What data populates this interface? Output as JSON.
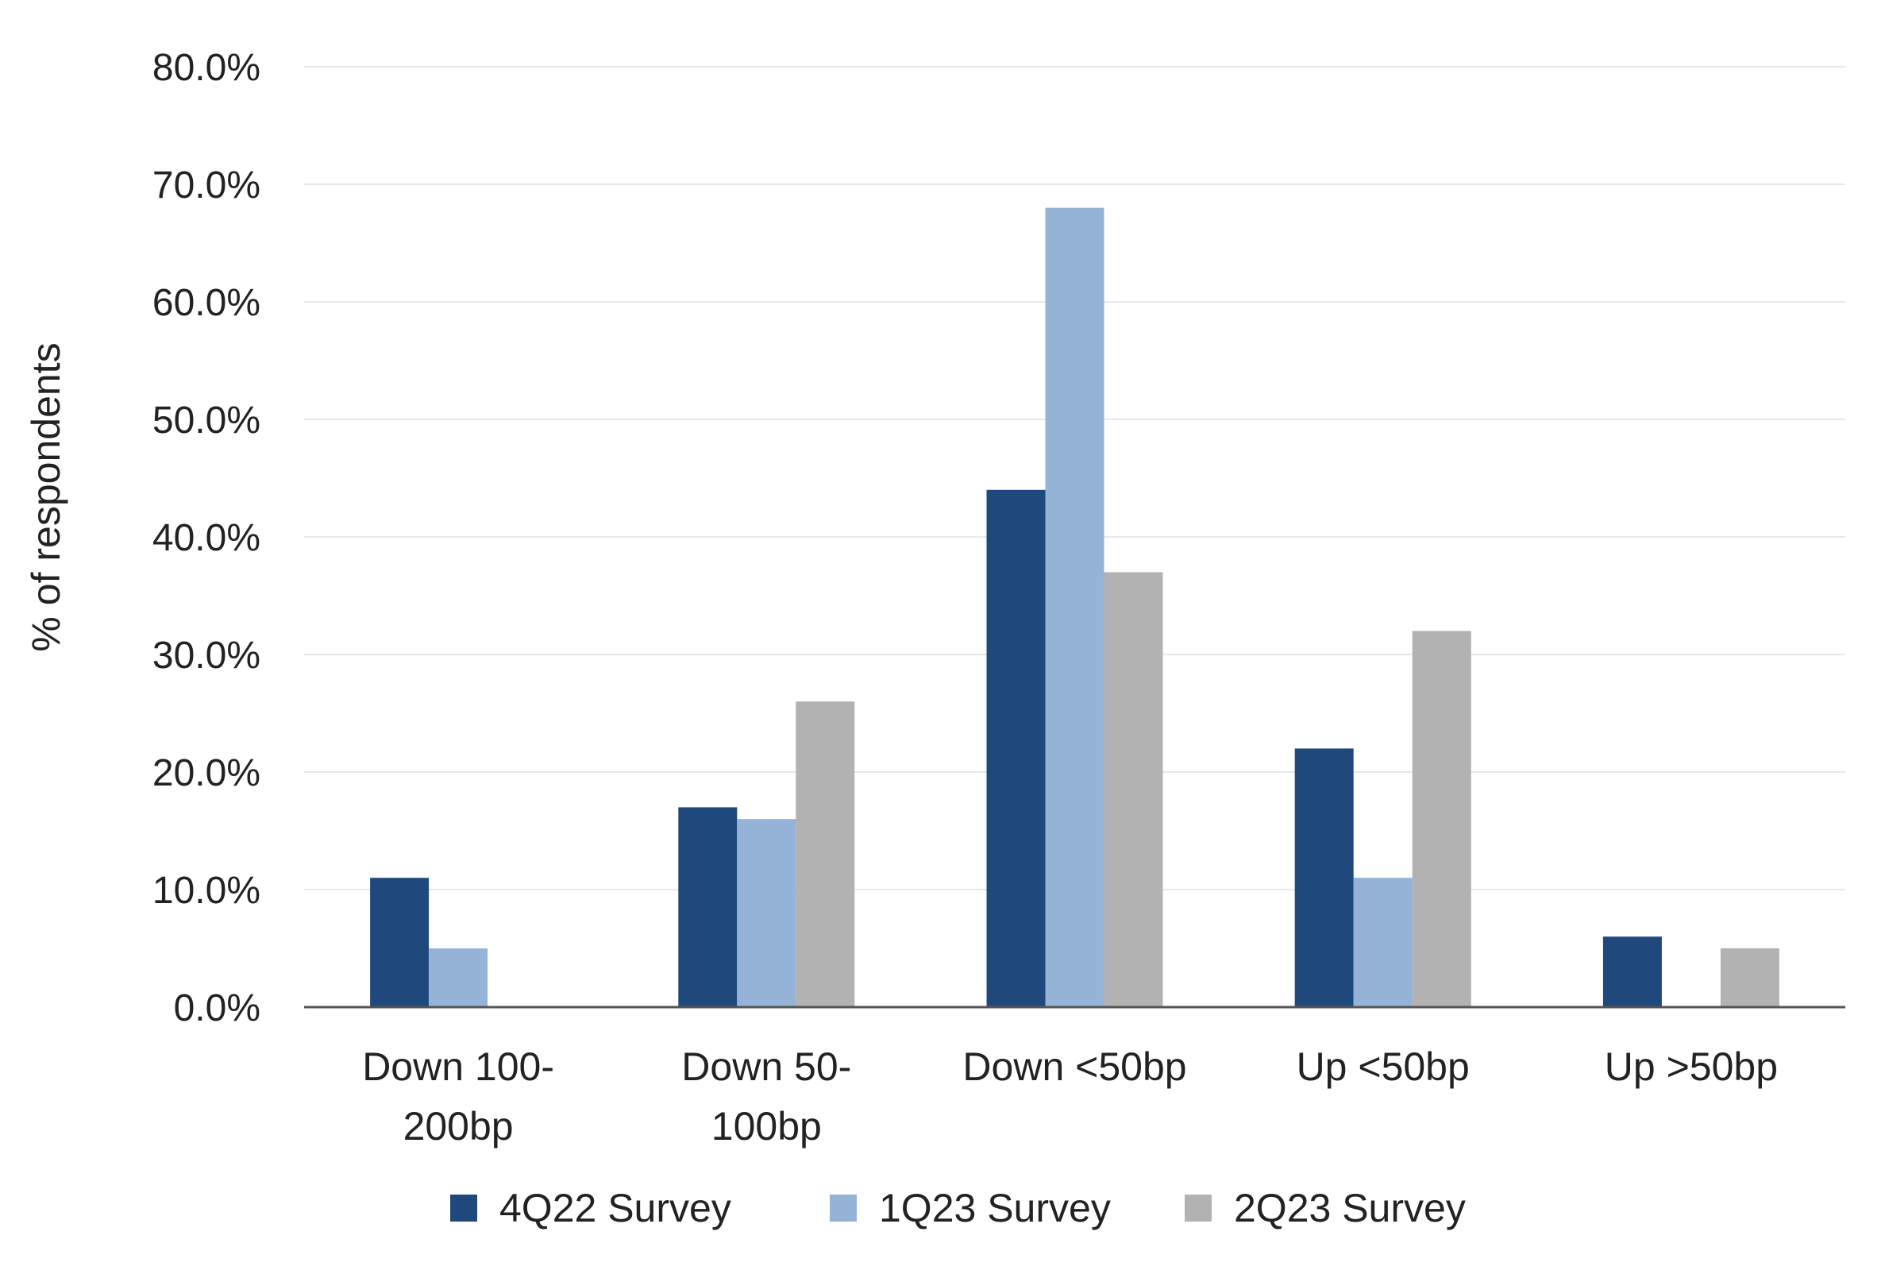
{
  "chart_data": {
    "type": "bar",
    "categories": [
      [
        "Down 100-",
        "200bp"
      ],
      [
        "Down 50-",
        "100bp"
      ],
      [
        "Down <50bp"
      ],
      [
        "Up <50bp"
      ],
      [
        "Up >50bp"
      ]
    ],
    "series": [
      {
        "name": "4Q22 Survey",
        "color": "#1f497d",
        "values": [
          11,
          17,
          44,
          22,
          6
        ]
      },
      {
        "name": "1Q23 Survey",
        "color": "#95b3d7",
        "values": [
          5,
          16,
          68,
          11,
          0
        ]
      },
      {
        "name": "2Q23 Survey",
        "color": "#b2b2b2",
        "values": [
          0,
          26,
          37,
          32,
          5
        ]
      }
    ],
    "ylabel": "% of respondents",
    "ylim": [
      0,
      80
    ],
    "yticks": [
      "0.0%",
      "10.0%",
      "20.0%",
      "30.0%",
      "40.0%",
      "50.0%",
      "60.0%",
      "70.0%",
      "80.0%"
    ],
    "grid": true,
    "legend_position": "bottom",
    "gridline_color": "#e8e8e8",
    "axis_color": "#555555"
  }
}
